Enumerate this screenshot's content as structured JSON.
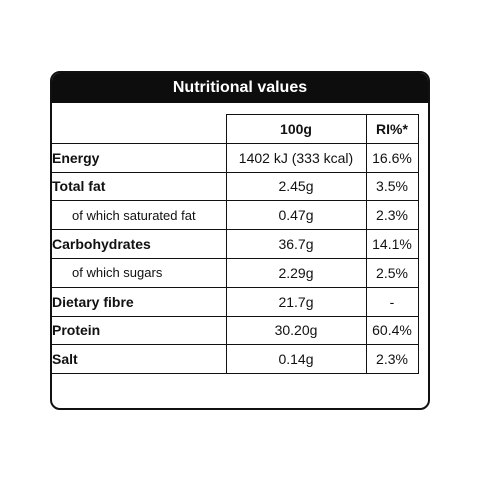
{
  "title": "Nutritional values",
  "columns": {
    "per_100g": "100g",
    "ri": "RI%*"
  },
  "rows": [
    {
      "label": "Energy",
      "per_100g": "1402 kJ (333 kcal)",
      "ri": "16.6%"
    },
    {
      "label": "Total fat",
      "per_100g": "2.45g",
      "ri": "3.5%"
    },
    {
      "label": "of which saturated fat",
      "per_100g": "0.47g",
      "ri": "2.3%"
    },
    {
      "label": "Carbohydrates",
      "per_100g": "36.7g",
      "ri": "14.1%"
    },
    {
      "label": "of which sugars",
      "per_100g": "2.29g",
      "ri": "2.5%"
    },
    {
      "label": "Dietary fibre",
      "per_100g": "21.7g",
      "ri": "-"
    },
    {
      "label": "Protein",
      "per_100g": "30.20g",
      "ri": "60.4%"
    },
    {
      "label": "Salt",
      "per_100g": "0.14g",
      "ri": "2.3%"
    }
  ]
}
